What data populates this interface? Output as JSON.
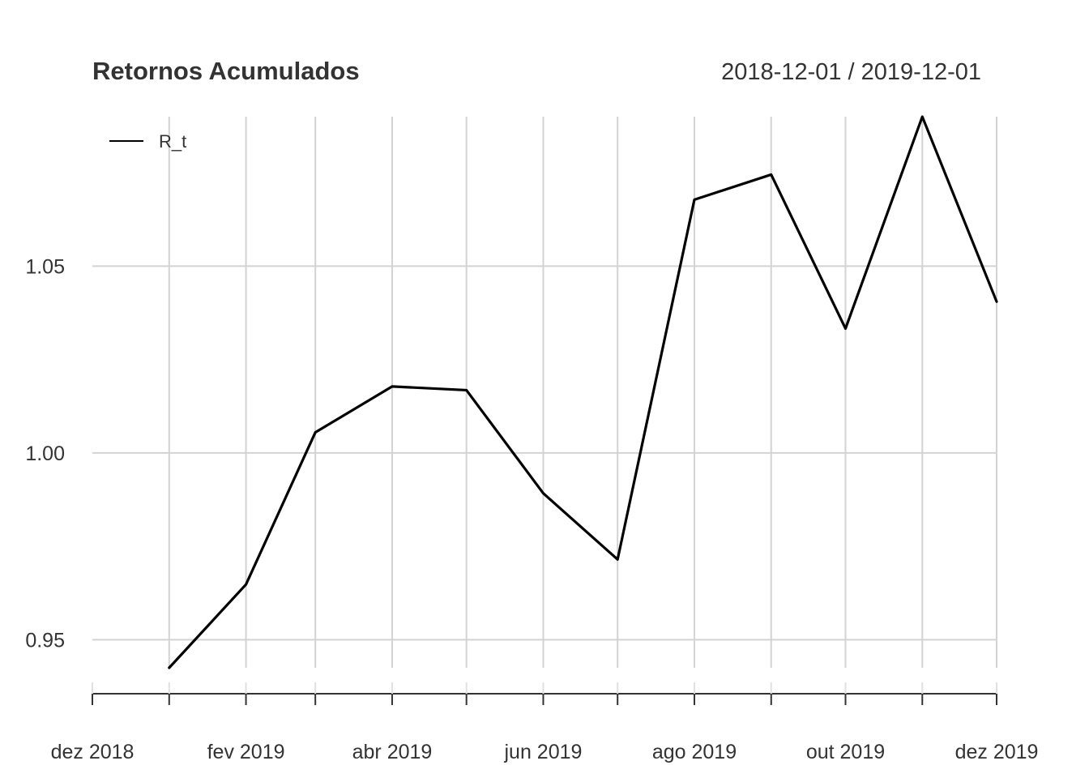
{
  "chart_data": {
    "type": "line",
    "title": "Retornos Acumulados",
    "date_range_label": "2018-12-01 / 2019-12-01",
    "xlabel": "",
    "ylabel": "",
    "x": [
      "2019-01-01",
      "2019-02-01",
      "2019-03-01",
      "2019-04-01",
      "2019-05-01",
      "2019-06-01",
      "2019-07-01",
      "2019-08-01",
      "2019-09-01",
      "2019-10-01",
      "2019-11-01",
      "2019-12-01"
    ],
    "series": [
      {
        "name": "R_t",
        "color": "#000000",
        "values": [
          0.9425,
          0.9648,
          1.0055,
          1.0178,
          1.0168,
          0.9892,
          0.9715,
          1.0678,
          1.0745,
          1.0333,
          1.09,
          1.0405
        ]
      }
    ],
    "xlim": [
      "2018-12-01",
      "2019-12-01"
    ],
    "ylim": [
      0.9425,
      1.09
    ],
    "x_tick_labels": [
      {
        "date": "2018-12-01",
        "label": "dez 2018"
      },
      {
        "date": "2019-02-01",
        "label": "fev 2019"
      },
      {
        "date": "2019-04-01",
        "label": "abr 2019"
      },
      {
        "date": "2019-06-01",
        "label": "jun 2019"
      },
      {
        "date": "2019-08-01",
        "label": "ago 2019"
      },
      {
        "date": "2019-10-01",
        "label": "out 2019"
      },
      {
        "date": "2019-12-01",
        "label": "dez 2019"
      }
    ],
    "x_gridlines": [
      "2019-01-01",
      "2019-02-01",
      "2019-03-01",
      "2019-04-01",
      "2019-05-01",
      "2019-06-01",
      "2019-07-01",
      "2019-08-01",
      "2019-09-01",
      "2019-10-01",
      "2019-11-01",
      "2019-12-01"
    ],
    "y_ticks": [
      {
        "value": 0.95,
        "label": "0.95"
      },
      {
        "value": 1.0,
        "label": "1.00"
      },
      {
        "value": 1.05,
        "label": "1.05"
      }
    ],
    "grid": true,
    "legend_position": "top-left",
    "grid_color": "#d3d3d3",
    "line_color": "#000000"
  }
}
